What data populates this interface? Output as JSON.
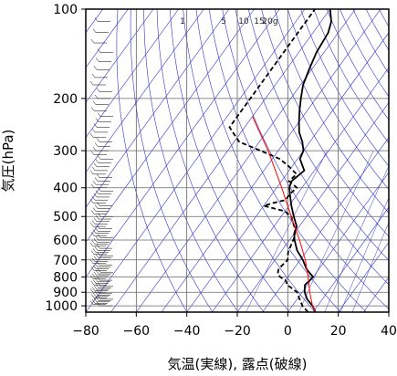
{
  "chart_data": {
    "type": "skew-t log-p sounding",
    "xlabel": "気温(実線), 露点(破線)",
    "ylabel": "気圧(hPa)",
    "x_ticks": [
      -80,
      -60,
      -40,
      -20,
      0,
      20,
      40
    ],
    "x_tick_labels": [
      "−80",
      "−60",
      "−40",
      "−20",
      "0",
      "20",
      "40"
    ],
    "xlim": [
      -80,
      40
    ],
    "y_ticks": [
      100,
      200,
      300,
      400,
      500,
      600,
      700,
      800,
      900,
      1000
    ],
    "y_tick_labels": [
      "100",
      "200",
      "300",
      "400",
      "500",
      "600",
      "700",
      "800",
      "900",
      "1000"
    ],
    "ylim": [
      1050,
      100
    ],
    "y_scale": "log",
    "grid": true,
    "mixing_ratio_labels": [
      "1",
      "5",
      "10",
      "15",
      "20g"
    ],
    "colors": {
      "temperature": "#000000",
      "dewpoint": "#000000",
      "parcel": "#ff0000",
      "isotherms": "#3333cc",
      "adiabats": "#3333cc",
      "grid": "#666666"
    },
    "series": [
      {
        "name": "気温",
        "style": "solid",
        "points": [
          [
            1050,
            11
          ],
          [
            1000,
            8
          ],
          [
            950,
            4
          ],
          [
            900,
            1
          ],
          [
            850,
            -1
          ],
          [
            800,
            0
          ],
          [
            780,
            -2
          ],
          [
            750,
            -5
          ],
          [
            700,
            -9
          ],
          [
            650,
            -14
          ],
          [
            600,
            -18
          ],
          [
            570,
            -20
          ],
          [
            540,
            -21
          ],
          [
            500,
            -25
          ],
          [
            460,
            -29
          ],
          [
            420,
            -33
          ],
          [
            400,
            -35
          ],
          [
            380,
            -36
          ],
          [
            350,
            -34
          ],
          [
            320,
            -39
          ],
          [
            300,
            -40
          ],
          [
            280,
            -43
          ],
          [
            260,
            -47
          ],
          [
            240,
            -50
          ],
          [
            220,
            -53
          ],
          [
            200,
            -56
          ],
          [
            180,
            -59
          ],
          [
            160,
            -61
          ],
          [
            140,
            -63
          ],
          [
            120,
            -64
          ],
          [
            110,
            -66
          ],
          [
            100,
            -70
          ]
        ]
      },
      {
        "name": "露点",
        "style": "dashed",
        "points": [
          [
            1050,
            8
          ],
          [
            1000,
            4
          ],
          [
            950,
            1
          ],
          [
            900,
            -2
          ],
          [
            850,
            -8
          ],
          [
            820,
            -10
          ],
          [
            800,
            -13
          ],
          [
            780,
            -15
          ],
          [
            750,
            -16
          ],
          [
            700,
            -15
          ],
          [
            660,
            -17
          ],
          [
            620,
            -18
          ],
          [
            580,
            -19
          ],
          [
            550,
            -21
          ],
          [
            520,
            -24
          ],
          [
            500,
            -26
          ],
          [
            480,
            -30
          ],
          [
            460,
            -40
          ],
          [
            450,
            -37
          ],
          [
            440,
            -33
          ],
          [
            420,
            -33
          ],
          [
            400,
            -32
          ],
          [
            380,
            -37
          ],
          [
            360,
            -36
          ],
          [
            340,
            -41
          ],
          [
            320,
            -47
          ],
          [
            300,
            -57
          ],
          [
            280,
            -68
          ],
          [
            250,
            -76
          ],
          [
            200,
            -76
          ],
          [
            150,
            -76
          ],
          [
            100,
            -76
          ]
        ]
      },
      {
        "name": "parcel",
        "style": "solid",
        "points": [
          [
            1050,
            11
          ],
          [
            1000,
            8
          ],
          [
            900,
            3
          ],
          [
            800,
            -2
          ],
          [
            700,
            -8
          ],
          [
            600,
            -16
          ],
          [
            500,
            -26
          ],
          [
            400,
            -38
          ],
          [
            300,
            -54
          ],
          [
            250,
            -65
          ],
          [
            230,
            -70
          ]
        ]
      }
    ]
  }
}
